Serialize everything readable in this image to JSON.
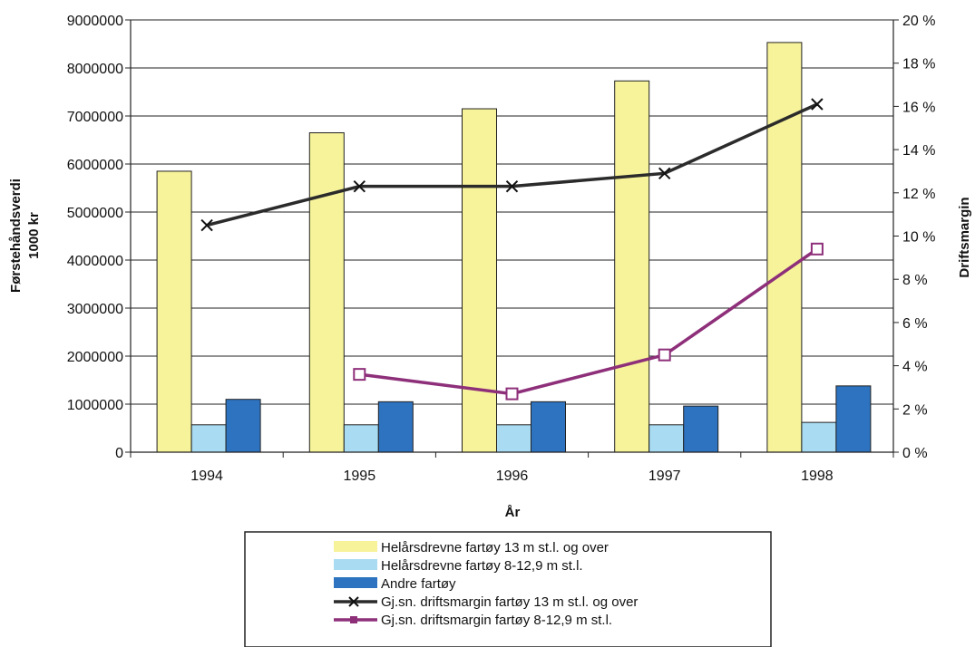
{
  "chart_data": {
    "type": "bar",
    "categories": [
      "1994",
      "1995",
      "1996",
      "1997",
      "1998"
    ],
    "xlabel": "År",
    "ylabel_lines": [
      "Førstehåndsverdi",
      "1000 kr"
    ],
    "y2label": "Driftsmargin",
    "ylim": [
      0,
      9000000
    ],
    "y2lim": [
      0,
      20
    ],
    "y_ticks": [
      "0",
      "1000000",
      "2000000",
      "3000000",
      "4000000",
      "5000000",
      "6000000",
      "7000000",
      "8000000",
      "9000000"
    ],
    "y2_ticks": [
      "0 %",
      "2 %",
      "4 %",
      "6 %",
      "8 %",
      "10 %",
      "12 %",
      "14 %",
      "16 %",
      "18 %",
      "20 %"
    ],
    "grid": true,
    "legend_position": "bottom",
    "series": [
      {
        "name": "Helårsdrevne fartøy 13 m st.l. og over",
        "kind": "bar",
        "axis": "left",
        "color": "#f7f39a",
        "values": [
          5850000,
          6650000,
          7150000,
          7730000,
          8530000
        ]
      },
      {
        "name": "Helårsdrevne fartøy 8-12,9 m st.l.",
        "kind": "bar",
        "axis": "left",
        "color": "#a9dcf2",
        "values": [
          570000,
          570000,
          570000,
          570000,
          620000
        ]
      },
      {
        "name": "Andre fartøy",
        "kind": "bar",
        "axis": "left",
        "color": "#2e73c0",
        "values": [
          1100000,
          1050000,
          1050000,
          960000,
          1380000
        ]
      },
      {
        "name": "Gj.sn. driftsmargin fartøy 13 m st.l. og over",
        "kind": "line",
        "axis": "right",
        "color": "#2b2b2b",
        "marker": "x",
        "values": [
          10.5,
          12.3,
          12.3,
          12.9,
          16.1
        ]
      },
      {
        "name": "Gj.sn. driftsmargin fartøy 8-12,9 m st.l.",
        "kind": "line",
        "axis": "right",
        "color": "#8e2f7a",
        "marker": "square",
        "values": [
          null,
          3.6,
          2.7,
          4.5,
          9.4
        ]
      }
    ]
  }
}
